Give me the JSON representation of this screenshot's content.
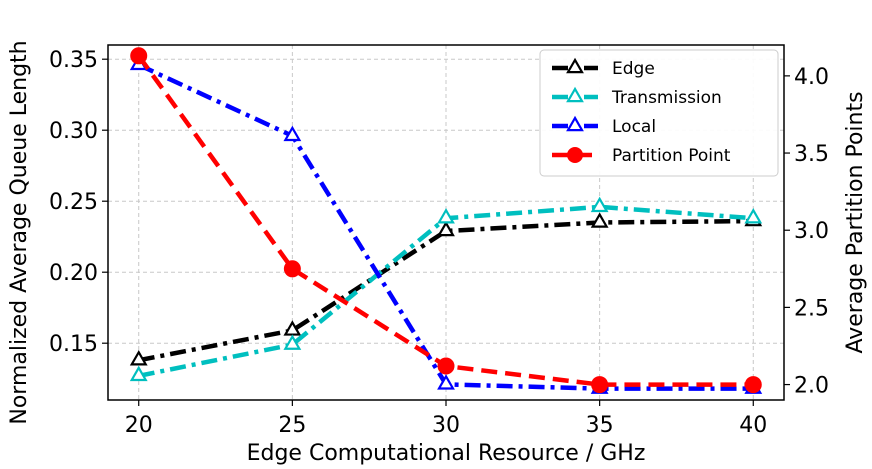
{
  "chart_data": {
    "type": "line",
    "xlabel": "Edge Computational Resource / GHz",
    "ylabel": "Normalized Average Queue Length",
    "y2label": "Average Partition Points",
    "x": [
      20,
      25,
      30,
      35,
      40
    ],
    "xlim": [
      19,
      41
    ],
    "ylim": [
      0.11,
      0.36
    ],
    "y2lim": [
      1.9,
      4.2
    ],
    "xticks": [
      "20",
      "25",
      "30",
      "35",
      "40"
    ],
    "yticks": [
      "0.15",
      "0.20",
      "0.25",
      "0.30",
      "0.35"
    ],
    "y2ticks": [
      "2.0",
      "2.5",
      "3.0",
      "3.5",
      "4.0"
    ],
    "grid": true,
    "legend_position": "top-right",
    "series": [
      {
        "name": "Edge",
        "axis": "left",
        "color": "#000000",
        "dash": "dashdot",
        "marker": "triangle",
        "values": [
          0.138,
          0.159,
          0.229,
          0.235,
          0.236
        ]
      },
      {
        "name": "Transmission",
        "axis": "left",
        "color": "#00bfbf",
        "dash": "dashdot",
        "marker": "triangle",
        "values": [
          0.127,
          0.149,
          0.238,
          0.246,
          0.238
        ]
      },
      {
        "name": "Local",
        "axis": "left",
        "color": "#0000ff",
        "dash": "dashdot",
        "marker": "triangle",
        "values": [
          0.346,
          0.296,
          0.121,
          0.118,
          0.118
        ]
      },
      {
        "name": "Partition Point",
        "axis": "right",
        "color": "#ff0000",
        "dash": "dashed",
        "marker": "circle",
        "values": [
          4.13,
          2.75,
          2.12,
          2.0,
          2.0
        ]
      }
    ]
  }
}
